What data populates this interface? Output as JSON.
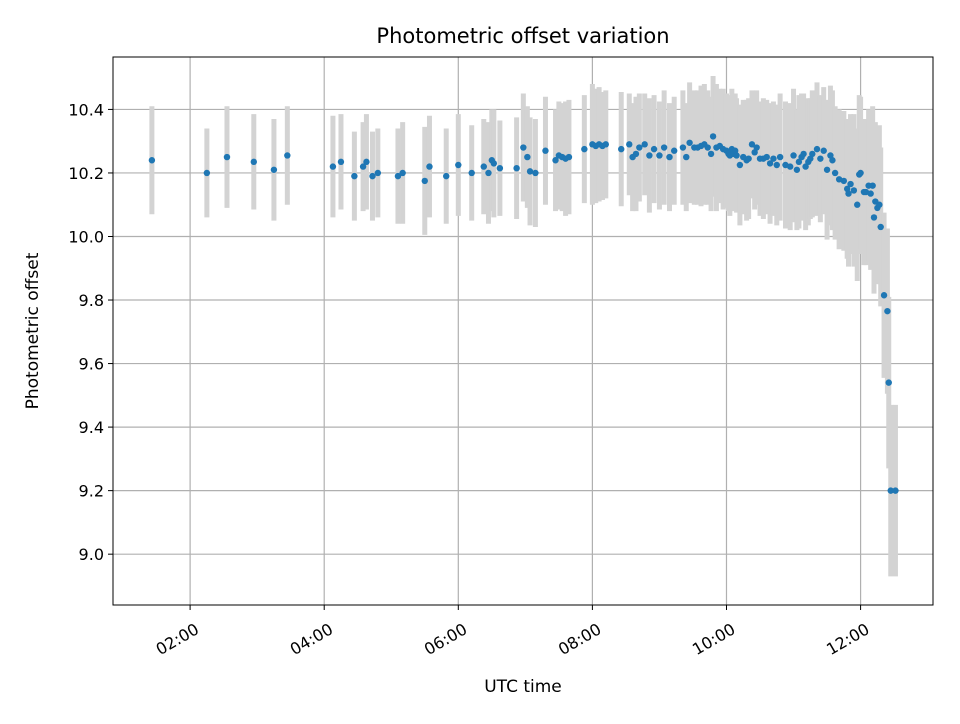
{
  "chart_data": {
    "type": "scatter",
    "title": "Photometric offset variation",
    "xlabel": "UTC time",
    "ylabel": "Photometric offset",
    "x_unit": "time of day (hours UTC)",
    "xlim": [
      0.85,
      13.08
    ],
    "ylim": [
      8.84,
      10.565
    ],
    "x_ticks": [
      {
        "value": 2,
        "label": "02:00"
      },
      {
        "value": 4,
        "label": "04:00"
      },
      {
        "value": 6,
        "label": "06:00"
      },
      {
        "value": 8,
        "label": "08:00"
      },
      {
        "value": 10,
        "label": "10:00"
      },
      {
        "value": 12,
        "label": "12:00"
      }
    ],
    "y_ticks": [
      {
        "value": 9.0,
        "label": "9.0"
      },
      {
        "value": 9.2,
        "label": "9.2"
      },
      {
        "value": 9.4,
        "label": "9.4"
      },
      {
        "value": 9.6,
        "label": "9.6"
      },
      {
        "value": 9.8,
        "label": "9.8"
      },
      {
        "value": 10.0,
        "label": "10.0"
      },
      {
        "value": 10.2,
        "label": "10.2"
      },
      {
        "value": 10.4,
        "label": "10.4"
      }
    ],
    "grid": true,
    "colors": {
      "points": "#1f77b4",
      "errorbars": "#d3d3d3",
      "grid": "#b0b0b0"
    },
    "series": [
      {
        "x": [
          1.43,
          2.25,
          2.55,
          2.95,
          3.25,
          3.45,
          4.13,
          4.25,
          4.45,
          4.58,
          4.63,
          4.72,
          4.8,
          5.1,
          5.17,
          5.5,
          5.57,
          5.82,
          6.0,
          6.2,
          6.38,
          6.45,
          6.5,
          6.53,
          6.62,
          6.87,
          6.97,
          7.03,
          7.07,
          7.15,
          7.3,
          7.45,
          7.5,
          7.55,
          7.6,
          7.65,
          7.88,
          8.0,
          8.05,
          8.1,
          8.15,
          8.2,
          8.43,
          8.55,
          8.6,
          8.65,
          8.7,
          8.78,
          8.85,
          8.92,
          9.0,
          9.07,
          9.15,
          9.22,
          9.35,
          9.4,
          9.45,
          9.52,
          9.57,
          9.62,
          9.67,
          9.72,
          9.77,
          9.8,
          9.85,
          9.9,
          9.95,
          10.0,
          10.03,
          10.05,
          10.08,
          10.1,
          10.13,
          10.15,
          10.2,
          10.25,
          10.3,
          10.33,
          10.38,
          10.42,
          10.45,
          10.5,
          10.55,
          10.6,
          10.65,
          10.7,
          10.75,
          10.8,
          10.88,
          10.95,
          11.0,
          11.05,
          11.08,
          11.12,
          11.15,
          11.18,
          11.22,
          11.25,
          11.28,
          11.35,
          11.4,
          11.45,
          11.5,
          11.55,
          11.58,
          11.62,
          11.68,
          11.75,
          11.8,
          11.82,
          11.85,
          11.9,
          11.95,
          11.98,
          12.0,
          12.05,
          12.08,
          12.12,
          12.15,
          12.18,
          12.2,
          12.22,
          12.25,
          12.28,
          12.3,
          12.35,
          12.4,
          12.42,
          12.45,
          12.52
        ],
        "y": [
          10.24,
          10.2,
          10.25,
          10.235,
          10.21,
          10.255,
          10.22,
          10.235,
          10.19,
          10.22,
          10.235,
          10.19,
          10.2,
          10.19,
          10.2,
          10.175,
          10.22,
          10.19,
          10.225,
          10.2,
          10.22,
          10.2,
          10.24,
          10.23,
          10.215,
          10.215,
          10.28,
          10.25,
          10.205,
          10.2,
          10.27,
          10.24,
          10.255,
          10.25,
          10.245,
          10.25,
          10.275,
          10.29,
          10.285,
          10.29,
          10.285,
          10.29,
          10.275,
          10.29,
          10.25,
          10.26,
          10.28,
          10.29,
          10.255,
          10.275,
          10.255,
          10.28,
          10.25,
          10.27,
          10.28,
          10.25,
          10.295,
          10.28,
          10.28,
          10.285,
          10.29,
          10.28,
          10.26,
          10.315,
          10.28,
          10.285,
          10.275,
          10.27,
          10.26,
          10.255,
          10.275,
          10.26,
          10.27,
          10.255,
          10.225,
          10.25,
          10.24,
          10.245,
          10.29,
          10.265,
          10.28,
          10.245,
          10.245,
          10.25,
          10.23,
          10.245,
          10.225,
          10.25,
          10.225,
          10.22,
          10.255,
          10.21,
          10.235,
          10.25,
          10.26,
          10.22,
          10.235,
          10.245,
          10.26,
          10.275,
          10.245,
          10.27,
          10.21,
          10.255,
          10.24,
          10.2,
          10.18,
          10.175,
          10.15,
          10.135,
          10.165,
          10.145,
          10.1,
          10.195,
          10.2,
          10.14,
          10.14,
          10.16,
          10.135,
          10.16,
          10.06,
          10.11,
          10.09,
          10.1,
          10.03,
          9.815,
          9.765,
          9.54,
          9.2,
          9.2
        ],
        "yerr": [
          0.17,
          0.14,
          0.16,
          0.15,
          0.16,
          0.155,
          0.16,
          0.15,
          0.14,
          0.14,
          0.15,
          0.14,
          0.14,
          0.15,
          0.16,
          0.17,
          0.16,
          0.15,
          0.16,
          0.15,
          0.15,
          0.16,
          0.16,
          0.17,
          0.15,
          0.16,
          0.17,
          0.16,
          0.17,
          0.17,
          0.17,
          0.16,
          0.17,
          0.17,
          0.18,
          0.18,
          0.17,
          0.19,
          0.18,
          0.18,
          0.17,
          0.17,
          0.18,
          0.16,
          0.17,
          0.18,
          0.17,
          0.16,
          0.18,
          0.17,
          0.17,
          0.18,
          0.17,
          0.17,
          0.18,
          0.17,
          0.19,
          0.18,
          0.18,
          0.19,
          0.19,
          0.18,
          0.18,
          0.19,
          0.2,
          0.18,
          0.19,
          0.18,
          0.18,
          0.19,
          0.19,
          0.18,
          0.18,
          0.18,
          0.19,
          0.18,
          0.19,
          0.19,
          0.17,
          0.18,
          0.18,
          0.18,
          0.19,
          0.18,
          0.19,
          0.18,
          0.19,
          0.2,
          0.2,
          0.2,
          0.21,
          0.19,
          0.21,
          0.2,
          0.19,
          0.2,
          0.2,
          0.19,
          0.2,
          0.21,
          0.2,
          0.2,
          0.22,
          0.22,
          0.22,
          0.21,
          0.22,
          0.22,
          0.22,
          0.23,
          0.22,
          0.24,
          0.24,
          0.25,
          0.24,
          0.23,
          0.23,
          0.24,
          0.24,
          0.25,
          0.24,
          0.25,
          0.24,
          0.25,
          0.25,
          0.26,
          0.26,
          0.27,
          0.27,
          0.27
        ]
      }
    ]
  }
}
